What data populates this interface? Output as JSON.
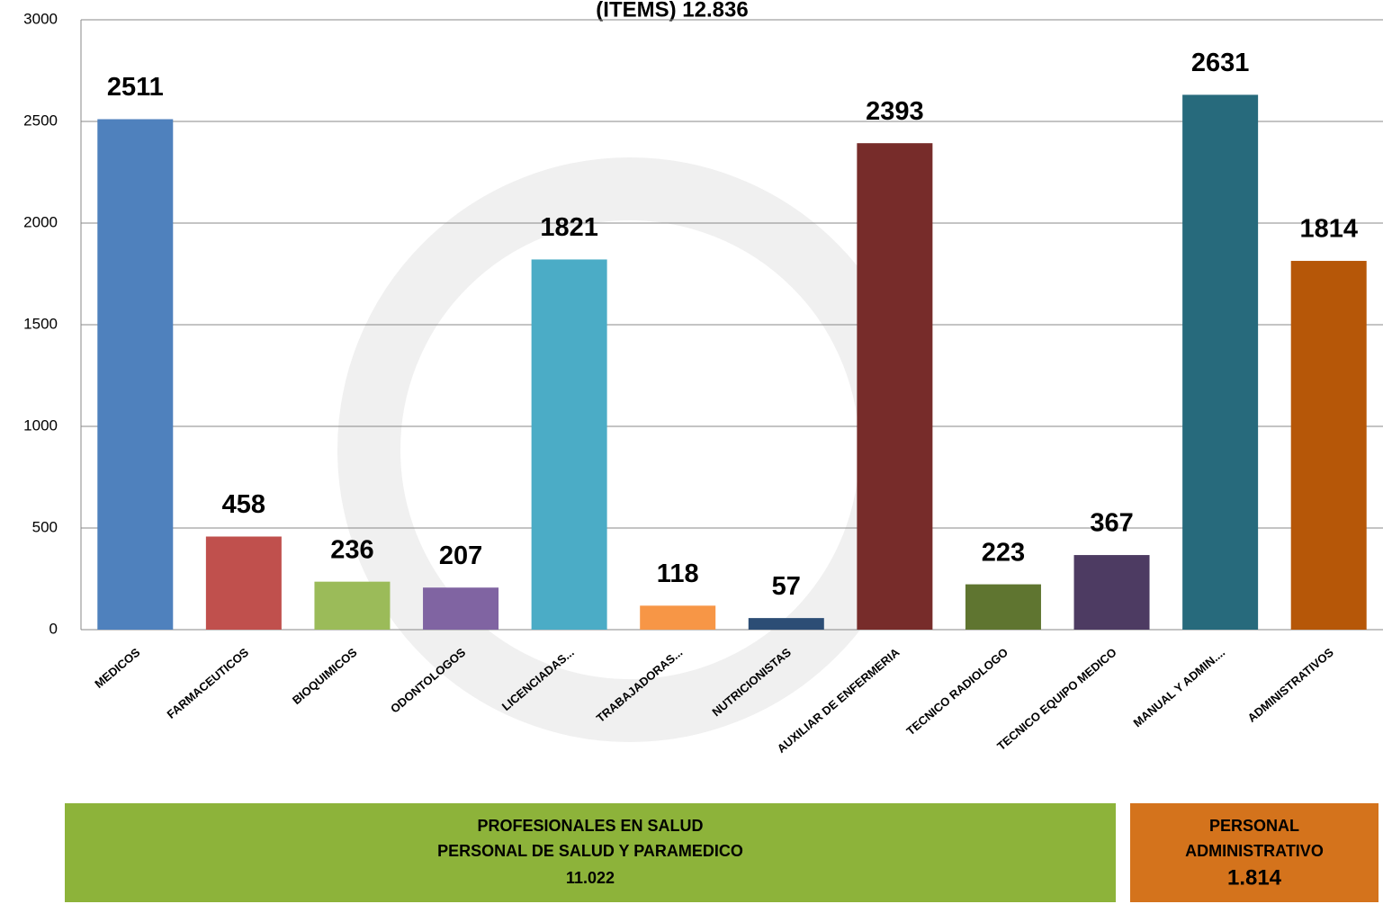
{
  "chart_data": {
    "type": "bar",
    "title": "(ITEMS) 12.836",
    "categories": [
      "MEDICOS",
      "FARMACEUTICOS",
      "BIOQUIMICOS",
      "ODONTOLOGOS",
      "LICENCIADAS...",
      "TRABAJADORAS...",
      "NUTRICIONISTAS",
      "AUXILIAR DE ENFERMERIA",
      "TECNICO RADIOLOGO",
      "TECNICO EQUIPO MEDICO",
      "MANUAL Y ADMIN....",
      "ADMINISTRATIVOS"
    ],
    "values": [
      2511,
      458,
      236,
      207,
      1821,
      118,
      57,
      2393,
      223,
      367,
      2631,
      1814
    ],
    "colors": [
      "#4f81bd",
      "#c0504d",
      "#9bbb59",
      "#8064a2",
      "#4bacc6",
      "#f79646",
      "#2c4d75",
      "#772c2a",
      "#5f7530",
      "#4d3b62",
      "#276a7c",
      "#b65708"
    ],
    "ylim": [
      0,
      3000
    ],
    "yticks": [
      0,
      500,
      1000,
      1500,
      2000,
      2500,
      3000
    ],
    "grid": true,
    "groups": [
      {
        "lines": [
          "PROFESIONALES EN SALUD",
          "PERSONAL DE SALUD Y PARAMEDICO"
        ],
        "total": "11.022",
        "color": "#8db33a"
      },
      {
        "lines": [
          "PERSONAL",
          "ADMINISTRATIVO"
        ],
        "total": "1.814",
        "color": "#d4731c"
      }
    ]
  }
}
